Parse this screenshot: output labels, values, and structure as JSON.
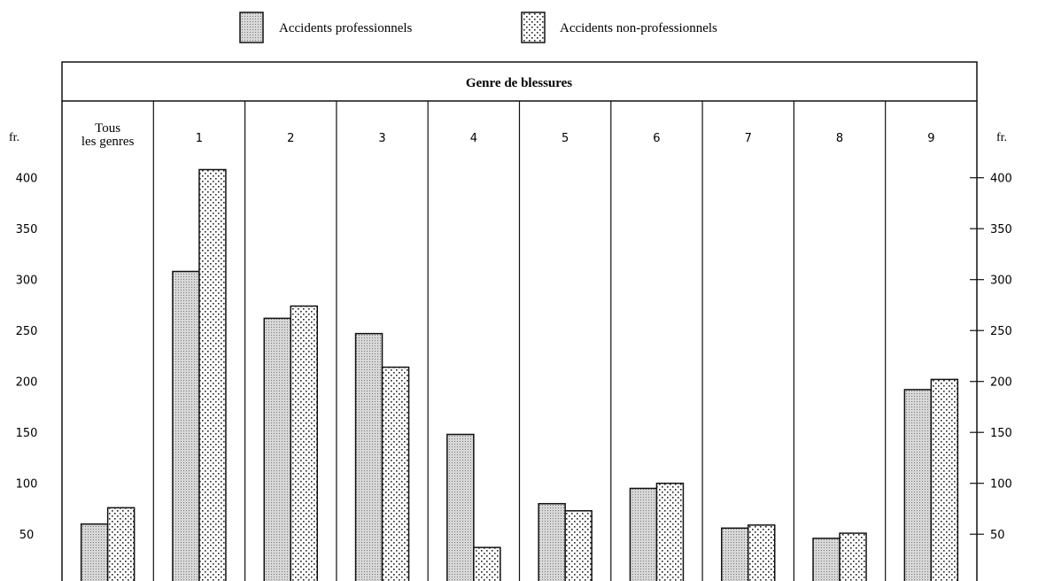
{
  "chart_data": {
    "type": "bar",
    "title": "Genre de blessures",
    "legend": [
      "Accidents professionnels",
      "Accidents non-professionnels"
    ],
    "legend_position": "top",
    "yunit_left": "fr.",
    "yunit_right": "fr.",
    "categories": [
      "Tous les genres",
      "1",
      "2",
      "3",
      "4",
      "5",
      "6",
      "7",
      "8",
      "9"
    ],
    "category_label_lines": [
      [
        "Tous",
        "les genres"
      ],
      [
        "1"
      ],
      [
        "2"
      ],
      [
        "3"
      ],
      [
        "4"
      ],
      [
        "5"
      ],
      [
        "6"
      ],
      [
        "7"
      ],
      [
        "8"
      ],
      [
        "9"
      ]
    ],
    "series": [
      {
        "name": "Accidents professionnels",
        "pattern": "fine-dots",
        "values": [
          60,
          308,
          262,
          247,
          148,
          80,
          95,
          56,
          46,
          192
        ]
      },
      {
        "name": "Accidents non-professionnels",
        "pattern": "coarse-dots",
        "values": [
          76,
          408,
          274,
          214,
          37,
          73,
          100,
          59,
          51,
          202
        ]
      }
    ],
    "yticks": [
      50,
      100,
      150,
      200,
      250,
      300,
      350,
      400
    ],
    "ylim": [
      0,
      400
    ],
    "grid": false
  },
  "colors": {
    "ink": "#111111",
    "fine_pattern_fill": "#cfcfcf",
    "coarse_pattern_fill": "#ffffff"
  }
}
